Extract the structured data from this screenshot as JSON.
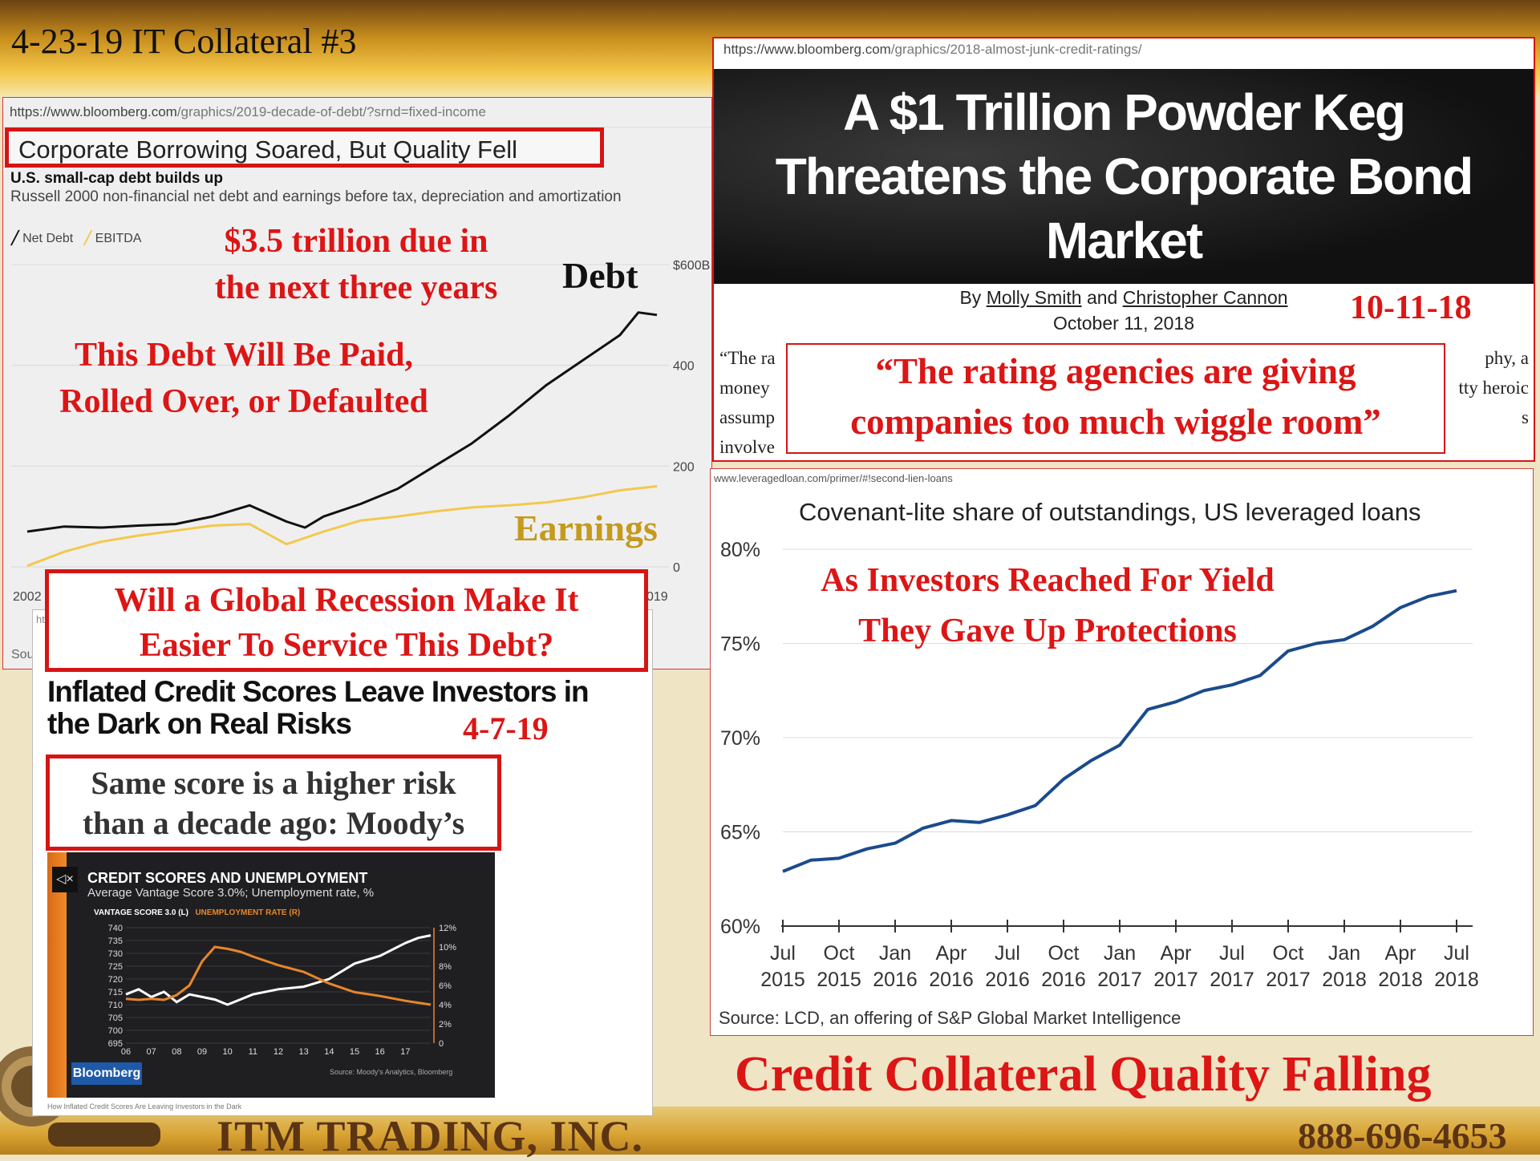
{
  "slide": {
    "title": "4-23-19 IT Collateral #3",
    "footer_company": "ITM TRADING, INC.",
    "footer_phone": "888-696-4653",
    "bottom_headline": "Credit Collateral Quality Falling"
  },
  "panel1": {
    "url_domain": "https://www.bloomberg.com",
    "url_path": "/graphics/2019-decade-of-debt/?srnd=fixed-income",
    "headline": "Corporate Borrowing Soared, But Quality Fell",
    "chart_title": "U.S. small-cap debt builds up",
    "chart_subtitle": "Russell 2000 non-financial net debt and earnings before tax, depreciation and amortization",
    "legend_debt": "Net Debt",
    "legend_ebitda": "EBITDA",
    "annotation_due": "$3.5 trillion due in the next three years",
    "annotation_due_line1": "$3.5 trillion due in",
    "annotation_due_line2": "the next three years",
    "annotation_paid_line1": "This Debt Will Be Paid,",
    "annotation_paid_line2": "Rolled Over, or Defaulted",
    "label_debt": "Debt",
    "label_earnings": "Earnings",
    "source_fragment": "Sou",
    "y_ticks": [
      "$600B",
      "400",
      "200",
      "0"
    ],
    "x_ticks": [
      "2002",
      "019"
    ]
  },
  "recession_box": {
    "line1": "Will a Global Recession Make It",
    "line2": "Easier To Service This Debt?"
  },
  "panel3": {
    "url_fragment": "ht",
    "headline_line1": "Inflated Credit Scores Leave Investors in",
    "headline_line2": "the Dark on Real Risks",
    "date": "4-7-19",
    "callout_line1": "Same score is a higher risk",
    "callout_line2": "than a decade ago: Moody’s",
    "video_title": "CREDIT SCORES AND UNEMPLOYMENT",
    "video_subtitle": "Average Vantage Score 3.0%; Unemployment rate, %",
    "legend_vantage": "VANTAGE SCORE 3.0 (L)",
    "legend_unemployment": "UNEMPLOYMENT RATE (R)",
    "left_ticks": [
      "740",
      "735",
      "730",
      "725",
      "720",
      "715",
      "710",
      "705",
      "700",
      "695"
    ],
    "right_ticks": [
      "12%",
      "10%",
      "8%",
      "6%",
      "4%",
      "2%",
      "0"
    ],
    "x_ticks": [
      "06",
      "07",
      "08",
      "09",
      "10",
      "11",
      "12",
      "13",
      "14",
      "15",
      "16",
      "17"
    ],
    "brand": "Bloomberg",
    "source": "Source: Moody's Analytics, Bloomberg",
    "caption": "How Inflated Credit Scores Are Leaving Investors in the Dark",
    "mute_icon": "mute-icon",
    "colors": {
      "vantage": "#ffffff",
      "unemployment": "#e8862a"
    }
  },
  "panel2": {
    "url_domain": "https://www.bloomberg.com",
    "url_path": "/graphics/2018-almost-junk-credit-ratings/",
    "headline_line1": "A $1 Trillion Powder Keg",
    "headline_line2": "Threatens the Corporate Bond",
    "headline_line3": "Market",
    "byline_by": "By",
    "author1": "Molly Smith",
    "byline_and": "and",
    "author2": "Christopher Cannon",
    "pub_date": "October 11, 2018",
    "date_annotation": "10-11-18",
    "body_left_1": "“The ra",
    "body_left_2": "money",
    "body_left_3": "assump",
    "body_left_4": "involve",
    "body_right_1": "phy, a",
    "body_right_2": "tty heroic",
    "body_right_3": "s",
    "quote_line1": "“The rating agencies are giving",
    "quote_line2": "companies too much wiggle room”"
  },
  "panel4": {
    "url": "www.leveragedloan.com/primer/#!second-lien-loans",
    "title": "Covenant-lite share of outstandings, US leveraged loans",
    "annotation_line1": "As Investors Reached For Yield",
    "annotation_line2": "They Gave Up Protections",
    "source": "Source: LCD, an offering of S&P Global Market Intelligence",
    "line_color": "#1a4b8c"
  },
  "chart_data": [
    {
      "type": "line",
      "title": "U.S. small-cap debt builds up",
      "subtitle": "Russell 2000 non-financial net debt and earnings before tax, depreciation and amortization",
      "x_range": [
        2002,
        2019
      ],
      "ylim": [
        0,
        600
      ],
      "y_ticks": [
        "$600B",
        "400",
        "200",
        "0"
      ],
      "series": [
        {
          "name": "Net Debt",
          "color": "#111111",
          "x": [
            2002,
            2003,
            2004,
            2005,
            2006,
            2007,
            2008,
            2009,
            2009.5,
            2010,
            2011,
            2012,
            2013,
            2014,
            2015,
            2016,
            2017,
            2018,
            2018.5,
            2019
          ],
          "values": [
            70,
            80,
            78,
            82,
            85,
            100,
            122,
            90,
            78,
            100,
            125,
            155,
            200,
            245,
            300,
            360,
            410,
            460,
            505,
            500
          ]
        },
        {
          "name": "EBITDA",
          "color": "#f2c94c",
          "x": [
            2002,
            2003,
            2004,
            2005,
            2006,
            2007,
            2008,
            2009,
            2010,
            2011,
            2012,
            2013,
            2014,
            2015,
            2016,
            2017,
            2018,
            2019
          ],
          "values": [
            2,
            30,
            50,
            62,
            72,
            82,
            85,
            45,
            70,
            92,
            100,
            110,
            118,
            122,
            128,
            138,
            152,
            160
          ]
        }
      ]
    },
    {
      "type": "line",
      "title": "CREDIT SCORES AND UNEMPLOYMENT",
      "subtitle": "Average Vantage Score 3.0%; Unemployment rate, %",
      "categories": [
        "06",
        "07",
        "08",
        "09",
        "10",
        "11",
        "12",
        "13",
        "14",
        "15",
        "16",
        "17"
      ],
      "series": [
        {
          "name": "VANTAGE SCORE 3.0 (L)",
          "axis": "left",
          "ylim": [
            695,
            740
          ],
          "x": [
            2006,
            2006.5,
            2007,
            2007.5,
            2008,
            2008.5,
            2009,
            2009.5,
            2010,
            2010.5,
            2011,
            2012,
            2013,
            2014,
            2015,
            2016,
            2017,
            2017.5,
            2018
          ],
          "values": [
            714,
            716,
            713,
            715,
            711,
            714,
            713,
            712,
            710,
            712,
            714,
            716,
            717,
            720,
            726,
            729,
            734,
            736,
            737
          ]
        },
        {
          "name": "UNEMPLOYMENT RATE (R)",
          "axis": "right",
          "ylim": [
            0,
            12
          ],
          "x": [
            2006,
            2006.5,
            2007,
            2007.5,
            2008,
            2008.5,
            2009,
            2009.5,
            2010,
            2010.5,
            2011,
            2012,
            2013,
            2014,
            2015,
            2016,
            2017,
            2017.5,
            2018
          ],
          "values": [
            4.6,
            4.5,
            4.6,
            4.5,
            5.0,
            6.0,
            8.5,
            10.0,
            9.8,
            9.5,
            9.0,
            8.1,
            7.4,
            6.2,
            5.3,
            4.9,
            4.4,
            4.2,
            4.0
          ]
        }
      ]
    },
    {
      "type": "line",
      "title": "Covenant-lite share of outstandings, US leveraged loans",
      "ylim": [
        60,
        80
      ],
      "y_ticks": [
        "80%",
        "75%",
        "70%",
        "65%",
        "60%"
      ],
      "categories": [
        "Jul 2015",
        "Oct 2015",
        "Jan 2016",
        "Apr 2016",
        "Jul 2016",
        "Oct 2016",
        "Jan 2017",
        "Apr 2017",
        "Jul 2017",
        "Oct 2017",
        "Jan 2018",
        "Apr 2018",
        "Jul 2018"
      ],
      "series": [
        {
          "name": "Covenant-lite share",
          "x": [
            0,
            0.5,
            1,
            1.5,
            2,
            2.5,
            3,
            3.5,
            4,
            4.5,
            5,
            5.5,
            6,
            6.5,
            7,
            7.5,
            8,
            8.5,
            9,
            9.5,
            10,
            10.5,
            11,
            11.5,
            12
          ],
          "values": [
            62.9,
            63.5,
            63.6,
            64.1,
            64.4,
            65.2,
            65.6,
            65.5,
            65.9,
            66.4,
            67.8,
            68.8,
            69.6,
            71.5,
            71.9,
            72.5,
            72.8,
            73.3,
            74.6,
            75.0,
            75.2,
            75.9,
            76.9,
            77.5,
            77.8
          ]
        }
      ]
    }
  ]
}
